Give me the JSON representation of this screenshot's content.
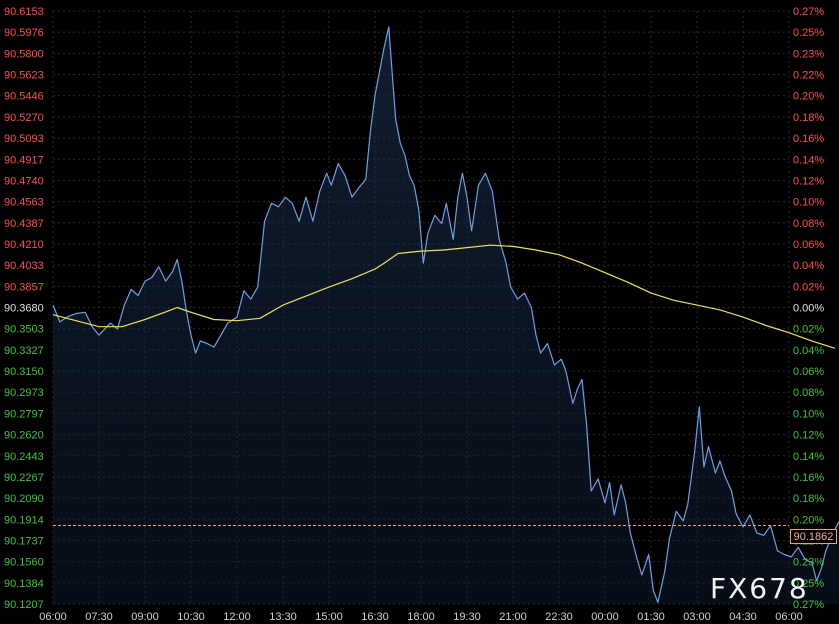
{
  "chart_data": {
    "type": "line",
    "x_tick_labels": [
      "06:00",
      "07:30",
      "09:00",
      "10:30",
      "12:00",
      "13:30",
      "15:00",
      "16:30",
      "18:00",
      "19:30",
      "21:00",
      "22:30",
      "00:00",
      "01:30",
      "03:00",
      "04:30",
      "06:00"
    ],
    "y_tick_labels": [
      "90.6153",
      "90.5976",
      "90.5800",
      "90.5623",
      "90.5446",
      "90.5270",
      "90.5093",
      "90.4917",
      "90.4740",
      "90.4563",
      "90.4387",
      "90.4210",
      "90.4033",
      "90.3857",
      "90.3680",
      "90.3503",
      "90.3327",
      "90.3150",
      "90.2973",
      "90.2797",
      "90.2620",
      "90.2443",
      "90.2267",
      "90.2090",
      "90.1914",
      "90.1737",
      "90.1560",
      "90.1384",
      "90.1207"
    ],
    "y2_tick_labels": [
      "0.27%",
      "0.25%",
      "0.23%",
      "0.22%",
      "0.20%",
      "0.18%",
      "0.16%",
      "0.14%",
      "0.12%",
      "0.10%",
      "0.08%",
      "0.06%",
      "0.04%",
      "0.02%",
      "0.00%",
      "0.02%",
      "0.04%",
      "0.06%",
      "0.08%",
      "0.10%",
      "0.12%",
      "0.14%",
      "0.16%",
      "0.18%",
      "0.20%",
      "0.22%",
      "0.23%",
      "0.25%",
      "0.27%"
    ],
    "ylim": [
      90.1207,
      90.6153
    ],
    "reference_price": 90.368,
    "last_price_label": "90.1862",
    "last_price": 90.1862,
    "grid": true,
    "series": [
      {
        "color": "#6f9fe6",
        "points": [
          [
            0,
            90.37
          ],
          [
            0.15,
            90.356
          ],
          [
            0.3,
            90.36
          ],
          [
            0.5,
            90.363
          ],
          [
            0.7,
            90.364
          ],
          [
            0.85,
            90.352
          ],
          [
            1.0,
            90.345
          ],
          [
            1.25,
            90.355
          ],
          [
            1.4,
            90.35
          ],
          [
            1.55,
            90.37
          ],
          [
            1.7,
            90.383
          ],
          [
            1.85,
            90.378
          ],
          [
            2.0,
            90.39
          ],
          [
            2.15,
            90.393
          ],
          [
            2.3,
            90.402
          ],
          [
            2.45,
            90.39
          ],
          [
            2.6,
            90.398
          ],
          [
            2.7,
            90.408
          ],
          [
            2.8,
            90.39
          ],
          [
            2.9,
            90.365
          ],
          [
            3.0,
            90.345
          ],
          [
            3.1,
            90.33
          ],
          [
            3.2,
            90.34
          ],
          [
            3.35,
            90.338
          ],
          [
            3.5,
            90.335
          ],
          [
            3.65,
            90.345
          ],
          [
            3.8,
            90.355
          ],
          [
            4.0,
            90.36
          ],
          [
            4.15,
            90.382
          ],
          [
            4.3,
            90.375
          ],
          [
            4.45,
            90.385
          ],
          [
            4.6,
            90.44
          ],
          [
            4.75,
            90.455
          ],
          [
            4.9,
            90.452
          ],
          [
            5.05,
            90.46
          ],
          [
            5.2,
            90.455
          ],
          [
            5.35,
            90.44
          ],
          [
            5.5,
            90.46
          ],
          [
            5.65,
            90.44
          ],
          [
            5.8,
            90.465
          ],
          [
            5.95,
            90.48
          ],
          [
            6.05,
            90.47
          ],
          [
            6.2,
            90.488
          ],
          [
            6.35,
            90.478
          ],
          [
            6.5,
            90.46
          ],
          [
            6.65,
            90.468
          ],
          [
            6.8,
            90.475
          ],
          [
            6.9,
            90.515
          ],
          [
            7.0,
            90.545
          ],
          [
            7.1,
            90.565
          ],
          [
            7.2,
            90.585
          ],
          [
            7.3,
            90.602
          ],
          [
            7.38,
            90.56
          ],
          [
            7.45,
            90.525
          ],
          [
            7.55,
            90.505
          ],
          [
            7.65,
            90.495
          ],
          [
            7.75,
            90.478
          ],
          [
            7.85,
            90.47
          ],
          [
            7.95,
            90.45
          ],
          [
            8.05,
            90.405
          ],
          [
            8.15,
            90.43
          ],
          [
            8.3,
            90.445
          ],
          [
            8.45,
            90.438
          ],
          [
            8.55,
            90.455
          ],
          [
            8.7,
            90.425
          ],
          [
            8.8,
            90.46
          ],
          [
            8.9,
            90.48
          ],
          [
            9.0,
            90.46
          ],
          [
            9.1,
            90.432
          ],
          [
            9.25,
            90.47
          ],
          [
            9.4,
            90.48
          ],
          [
            9.55,
            90.465
          ],
          [
            9.7,
            90.425
          ],
          [
            9.85,
            90.405
          ],
          [
            9.95,
            90.385
          ],
          [
            10.1,
            90.375
          ],
          [
            10.25,
            90.38
          ],
          [
            10.4,
            90.368
          ],
          [
            10.5,
            90.345
          ],
          [
            10.6,
            90.33
          ],
          [
            10.75,
            90.338
          ],
          [
            10.9,
            90.32
          ],
          [
            11.05,
            90.325
          ],
          [
            11.15,
            90.315
          ],
          [
            11.3,
            90.288
          ],
          [
            11.4,
            90.3
          ],
          [
            11.5,
            90.308
          ],
          [
            11.6,
            90.27
          ],
          [
            11.7,
            90.215
          ],
          [
            11.85,
            90.225
          ],
          [
            12.0,
            90.205
          ],
          [
            12.1,
            90.222
          ],
          [
            12.2,
            90.195
          ],
          [
            12.35,
            90.22
          ],
          [
            12.45,
            90.205
          ],
          [
            12.55,
            90.18
          ],
          [
            12.7,
            90.158
          ],
          [
            12.8,
            90.145
          ],
          [
            12.95,
            90.162
          ],
          [
            13.05,
            90.132
          ],
          [
            13.15,
            90.122
          ],
          [
            13.3,
            90.148
          ],
          [
            13.4,
            90.175
          ],
          [
            13.55,
            90.198
          ],
          [
            13.7,
            90.19
          ],
          [
            13.8,
            90.204
          ],
          [
            13.95,
            90.248
          ],
          [
            14.05,
            90.285
          ],
          [
            14.15,
            90.235
          ],
          [
            14.25,
            90.252
          ],
          [
            14.4,
            90.23
          ],
          [
            14.5,
            90.24
          ],
          [
            14.6,
            90.228
          ],
          [
            14.75,
            90.215
          ],
          [
            14.85,
            90.196
          ],
          [
            15.0,
            90.185
          ],
          [
            15.15,
            90.195
          ],
          [
            15.3,
            90.18
          ],
          [
            15.45,
            90.178
          ],
          [
            15.6,
            90.186
          ],
          [
            15.75,
            90.165
          ],
          [
            15.9,
            90.162
          ],
          [
            16.05,
            90.16
          ],
          [
            16.2,
            90.168
          ],
          [
            16.35,
            90.158
          ],
          [
            16.5,
            90.155
          ],
          [
            16.6,
            90.14
          ],
          [
            16.7,
            90.15
          ],
          [
            16.8,
            90.165
          ],
          [
            16.9,
            90.175
          ],
          [
            17.0,
            90.183
          ],
          [
            17.1,
            90.19
          ]
        ]
      },
      {
        "color": "#e9e25a",
        "points": [
          [
            0,
            90.362
          ],
          [
            0.5,
            90.357
          ],
          [
            1.0,
            90.352
          ],
          [
            1.5,
            90.352
          ],
          [
            2.0,
            90.358
          ],
          [
            2.5,
            90.365
          ],
          [
            2.7,
            90.368
          ],
          [
            3.0,
            90.364
          ],
          [
            3.5,
            90.358
          ],
          [
            4.0,
            90.357
          ],
          [
            4.5,
            90.359
          ],
          [
            5.0,
            90.37
          ],
          [
            6.0,
            90.385
          ],
          [
            6.5,
            90.392
          ],
          [
            7.0,
            90.4
          ],
          [
            7.2,
            90.405
          ],
          [
            7.5,
            90.413
          ],
          [
            8.0,
            90.415
          ],
          [
            8.5,
            90.416
          ],
          [
            9.0,
            90.418
          ],
          [
            9.5,
            90.42
          ],
          [
            10.0,
            90.419
          ],
          [
            10.5,
            90.416
          ],
          [
            11.0,
            90.412
          ],
          [
            11.5,
            90.405
          ],
          [
            12.0,
            90.397
          ],
          [
            12.5,
            90.389
          ],
          [
            13.0,
            90.38
          ],
          [
            13.5,
            90.374
          ],
          [
            14.0,
            90.37
          ],
          [
            14.5,
            90.366
          ],
          [
            15.0,
            90.36
          ],
          [
            15.5,
            90.353
          ],
          [
            16.0,
            90.347
          ],
          [
            16.5,
            90.34
          ],
          [
            17.0,
            90.334
          ]
        ]
      }
    ]
  }
}
